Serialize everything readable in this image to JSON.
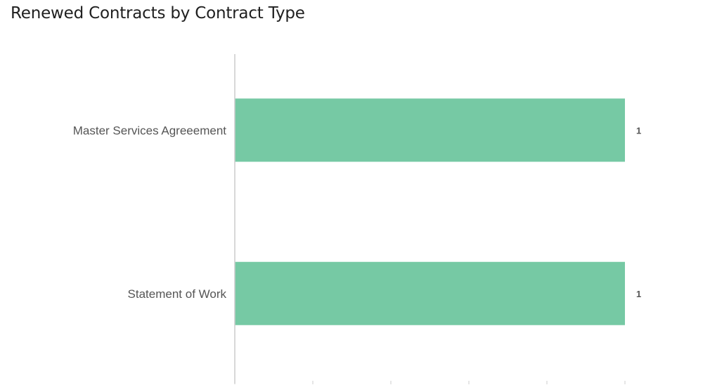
{
  "chart_data": {
    "type": "bar",
    "orientation": "horizontal",
    "title": "Renewed Contracts by Contract Type",
    "categories": [
      "Master Services Agreeement",
      "Statement of Work"
    ],
    "values": [
      1,
      1
    ],
    "xlim": [
      0,
      1
    ],
    "xlabel": "",
    "ylabel": "",
    "grid": false,
    "legend": "none",
    "bar_color": "#76c9a4",
    "axis_color": "#cccccc"
  }
}
